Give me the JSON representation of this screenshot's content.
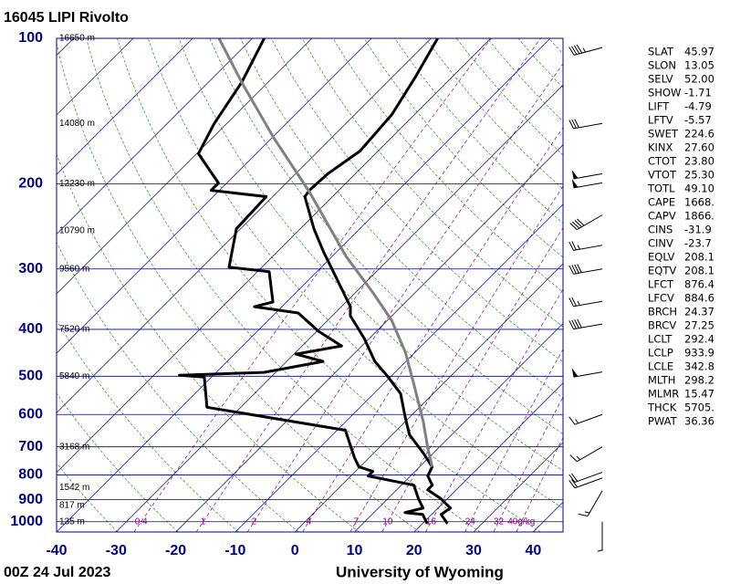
{
  "chart_data": {
    "type": "skewt",
    "title": "16045 LIPI Rivolto",
    "date": "00Z 24 Jul 2023",
    "source": "University of Wyoming",
    "ylim": [
      1050,
      100
    ],
    "yticks": [
      100,
      200,
      300,
      400,
      500,
      600,
      700,
      800,
      900,
      1000
    ],
    "log_y": true,
    "xlim": [
      -40,
      45
    ],
    "xticks": [
      -40,
      -30,
      -20,
      -10,
      0,
      10,
      20,
      30,
      40
    ],
    "grid": true,
    "series": [
      {
        "color": "#000000",
        "pressure": [
          100,
          120.6,
          143.6,
          171,
          190.6,
          206,
          212.6,
          247.7,
          276,
          314.8,
          359,
          374.8,
          418,
          466,
          497.6,
          543,
          605.6,
          660.7,
          721,
          769.9,
          804.2,
          840,
          858.6,
          897,
          937,
          966,
          1008.8
        ],
        "values": [
          -58.9,
          -56.1,
          -53.8,
          -53.0,
          -54.6,
          -54.9,
          -54.6,
          -47.7,
          -42.3,
          -35.4,
          -28.5,
          -27.0,
          -20.8,
          -15.2,
          -10.9,
          -5.5,
          -0.9,
          2.9,
          8.3,
          12.1,
          12.9,
          15.2,
          15.2,
          19.0,
          22.1,
          21.6,
          24.2
        ]
      },
      {
        "color": "#000000",
        "pressure": [
          100,
          123.3,
          150,
          173.2,
          199.2,
          206.3,
          212.6,
          247.7,
          297.4,
          304,
          351,
          359,
          370,
          403.7,
          432.8,
          450,
          466,
          491,
          497.6,
          502,
          579.7,
          646.8,
          736.6,
          769.9,
          786.9,
          804,
          840,
          897,
          937,
          957,
          966,
          1008.8
        ],
        "values": [
          -88.0,
          -84.4,
          -82.1,
          -79.7,
          -71.4,
          -71.4,
          -61.1,
          -60.7,
          -55.5,
          -48.0,
          -42.3,
          -44.6,
          -36.2,
          -29.7,
          -23.4,
          -29.7,
          -23.9,
          -32.0,
          -45.7,
          -41.2,
          -35.7,
          -8.6,
          -2.5,
          -0.2,
          2.9,
          2.9,
          12.1,
          15.2,
          17.5,
          15.2,
          18.5,
          20.8
        ]
      },
      {
        "color": "#808080",
        "pressure": [
          100,
          123.3,
          160.1,
          208,
          282.4,
          336.2,
          383,
          446.3,
          519.8,
          619,
          705.4,
          769.9
        ],
        "values": [
          -95.6,
          -84.4,
          -69.9,
          -54.6,
          -37.7,
          -27.0,
          -19.3,
          -11.6,
          -4.8,
          2.9,
          8.3,
          12.1
        ]
      }
    ],
    "heights": [
      {
        "pressure": 100,
        "label": "16650 m"
      },
      {
        "pressure": 150,
        "label": "14080 m"
      },
      {
        "pressure": 200,
        "label": "12230 m"
      },
      {
        "pressure": 250,
        "label": "10790 m"
      },
      {
        "pressure": 300,
        "label": "9560 m"
      },
      {
        "pressure": 400,
        "label": "7520 m"
      },
      {
        "pressure": 500,
        "label": "5840 m"
      },
      {
        "pressure": 700,
        "label": "3168 m"
      },
      {
        "pressure": 850,
        "label": "1542 m"
      },
      {
        "pressure": 925,
        "label": "817 m"
      },
      {
        "pressure": 1000,
        "label": "135 m"
      }
    ],
    "mixing_ratios": [
      0.4,
      1,
      2,
      4,
      7,
      10,
      16,
      24,
      32,
      {
        "value": 40,
        "label": "40g/kg"
      }
    ],
    "winds": {
      "pressure": [
        104.5,
        150,
        190.6,
        199,
        232,
        268,
        300,
        350,
        390,
        490,
        600,
        700,
        790,
        812,
        863,
        1000
      ],
      "speed": [
        45,
        30,
        50,
        50,
        40,
        25,
        40,
        25,
        40,
        50,
        15,
        15,
        20,
        20,
        15,
        5
      ],
      "direction": [
        255,
        260,
        260,
        260,
        240,
        260,
        260,
        260,
        260,
        260,
        250,
        240,
        250,
        250,
        210,
        180
      ]
    },
    "indices": [
      [
        "SLAT",
        "45.97"
      ],
      [
        "SLON",
        "13.05"
      ],
      [
        "SELV",
        "52.00"
      ],
      [
        "SHOW",
        "-1.71"
      ],
      [
        "LIFT",
        "-4.79"
      ],
      [
        "LFTV",
        "-5.57"
      ],
      [
        "SWET",
        "224.6"
      ],
      [
        "KINX",
        "27.60"
      ],
      [
        "CTOT",
        "23.80"
      ],
      [
        "VTOT",
        "25.30"
      ],
      [
        "TOTL",
        "49.10"
      ],
      [
        "CAPE",
        "1668."
      ],
      [
        "CAPV",
        "1866."
      ],
      [
        "CINS",
        "-31.9"
      ],
      [
        "CINV",
        "-23.7"
      ],
      [
        "EQLV",
        "208.1"
      ],
      [
        "EQTV",
        "208.1"
      ],
      [
        "LFCT",
        "876.4"
      ],
      [
        "LFCV",
        "884.6"
      ],
      [
        "BRCH",
        "24.37"
      ],
      [
        "BRCV",
        "27.25"
      ],
      [
        "LCLT",
        "292.4"
      ],
      [
        "LCLP",
        "933.9"
      ],
      [
        "LCLE",
        "342.8"
      ],
      [
        "MLTH",
        "298.2"
      ],
      [
        "MLMR",
        "15.47"
      ],
      [
        "THCK",
        "5705."
      ],
      [
        "PWAT",
        "36.36"
      ]
    ]
  }
}
